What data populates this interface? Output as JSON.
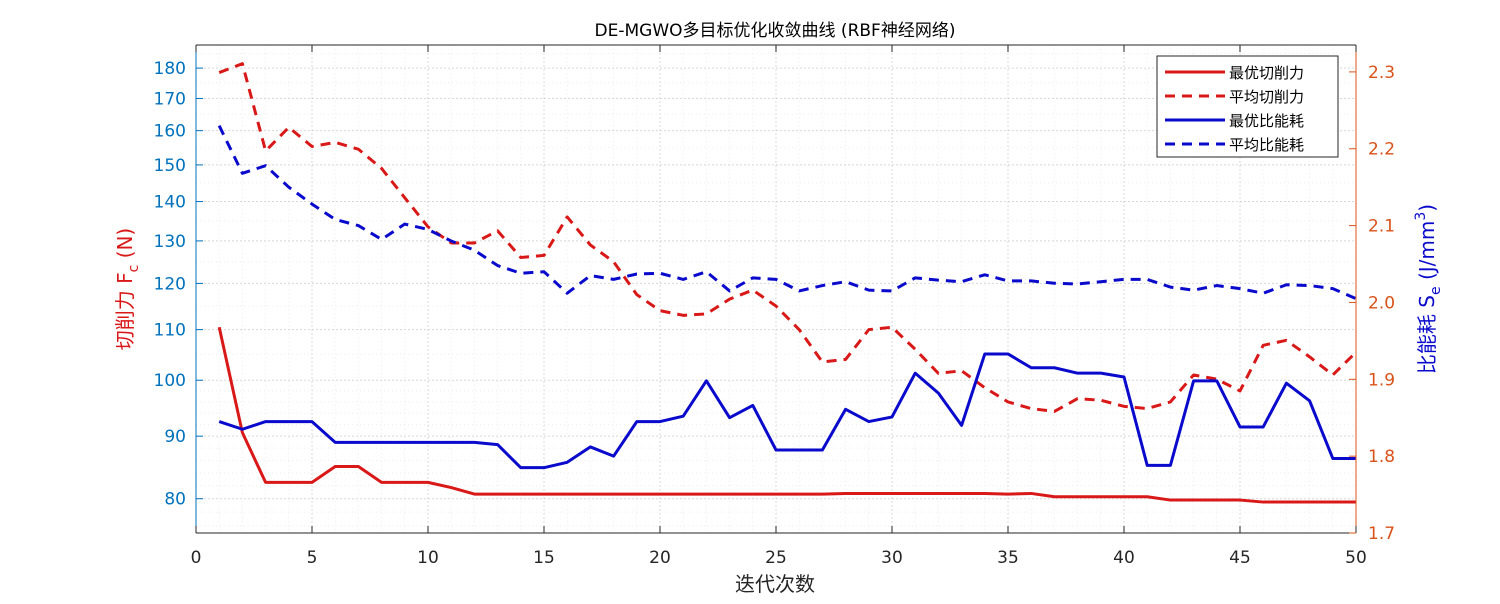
{
  "chart_data": {
    "type": "line",
    "title": "DE-MGWO多目标优化收敛曲线 (RBF神经网络)",
    "xlabel": "迭代次数",
    "ylabel_left": "切削力 F",
    "ylabel_left_sub": "c",
    "ylabel_left_unit": " (N)",
    "ylabel_right": "比能耗 S",
    "ylabel_right_sub": "e",
    "ylabel_right_unit": " (J/mm",
    "ylabel_right_sup": "3",
    "ylabel_right_close": ")",
    "xlim": [
      0,
      50
    ],
    "ylim_left": [
      75,
      188
    ],
    "ylim_right": [
      1.7,
      2.335
    ],
    "y_left_scale": "log",
    "x_ticks": [
      0,
      5,
      10,
      15,
      20,
      25,
      30,
      35,
      40,
      45,
      50
    ],
    "y_left_ticks": [
      80,
      90,
      100,
      110,
      120,
      130,
      140,
      150,
      160,
      170,
      180
    ],
    "y_right_ticks": [
      1.7,
      1.8,
      1.9,
      2.0,
      2.1,
      2.2,
      2.3
    ],
    "grid": true,
    "legend_position": "top-right",
    "colors": {
      "red": "#D91818",
      "blue": "#0A0ACC",
      "left_axis": "#0072BD",
      "right_axis": "#D95319",
      "grid": "#d8d8d8",
      "axis": "#262626"
    },
    "x": [
      1,
      2,
      3,
      4,
      5,
      6,
      7,
      8,
      9,
      10,
      11,
      12,
      13,
      14,
      15,
      16,
      17,
      18,
      19,
      20,
      21,
      22,
      23,
      24,
      25,
      26,
      27,
      28,
      29,
      30,
      31,
      32,
      33,
      34,
      35,
      36,
      37,
      38,
      39,
      40,
      41,
      42,
      43,
      44,
      45,
      46,
      47,
      48,
      49,
      50
    ],
    "series": [
      {
        "name": "最优切削力",
        "axis": "left",
        "dash": false,
        "color": "#D91818",
        "values": [
          110.5,
          90.6,
          82.5,
          82.5,
          82.5,
          85,
          85,
          82.5,
          82.5,
          82.5,
          81.7,
          80.7,
          80.7,
          80.7,
          80.7,
          80.7,
          80.7,
          80.7,
          80.7,
          80.7,
          80.7,
          80.7,
          80.7,
          80.7,
          80.7,
          80.7,
          80.7,
          80.8,
          80.8,
          80.8,
          80.8,
          80.8,
          80.8,
          80.8,
          80.7,
          80.8,
          80.3,
          80.3,
          80.3,
          80.3,
          80.3,
          79.8,
          79.8,
          79.8,
          79.8,
          79.5,
          79.5,
          79.5,
          79.5,
          79.5
        ]
      },
      {
        "name": "平均切削力",
        "axis": "left",
        "dash": true,
        "color": "#D91818",
        "values": [
          178.5,
          181.5,
          154,
          161,
          155.3,
          156.5,
          154.5,
          149,
          141,
          133.5,
          129.5,
          129.5,
          132.5,
          126,
          126.5,
          136,
          129,
          125,
          117.5,
          114,
          113,
          113.3,
          116.5,
          118.5,
          115,
          110,
          103.5,
          104,
          110,
          110.5,
          106,
          101.3,
          101.8,
          98.6,
          96,
          94.8,
          94.3,
          96.6,
          96.3,
          95.2,
          94.8,
          96,
          101,
          100.2,
          98,
          106.8,
          107.8,
          104.5,
          101,
          105.4
        ]
      },
      {
        "name": "最优比能耗",
        "axis": "right",
        "dash": false,
        "color": "#0A0ACC",
        "values": [
          1.845,
          1.835,
          1.845,
          1.845,
          1.845,
          1.818,
          1.818,
          1.818,
          1.818,
          1.818,
          1.818,
          1.818,
          1.815,
          1.785,
          1.785,
          1.792,
          1.812,
          1.8,
          1.845,
          1.845,
          1.852,
          1.898,
          1.85,
          1.866,
          1.808,
          1.808,
          1.808,
          1.861,
          1.845,
          1.851,
          1.908,
          1.882,
          1.84,
          1.933,
          1.933,
          1.915,
          1.915,
          1.908,
          1.908,
          1.903,
          1.788,
          1.788,
          1.898,
          1.898,
          1.838,
          1.838,
          1.895,
          1.872,
          1.797,
          1.797
        ]
      },
      {
        "name": "平均比能耗",
        "axis": "right",
        "dash": true,
        "color": "#0A0ACC",
        "values": [
          2.23,
          2.168,
          2.178,
          2.15,
          2.128,
          2.108,
          2.1,
          2.082,
          2.102,
          2.095,
          2.08,
          2.068,
          2.048,
          2.038,
          2.04,
          2.012,
          2.035,
          2.03,
          2.037,
          2.038,
          2.03,
          2.04,
          2.015,
          2.032,
          2.03,
          2.015,
          2.022,
          2.027,
          2.016,
          2.015,
          2.032,
          2.029,
          2.027,
          2.036,
          2.028,
          2.028,
          2.025,
          2.024,
          2.027,
          2.03,
          2.03,
          2.02,
          2.016,
          2.022,
          2.018,
          2.012,
          2.023,
          2.022,
          2.018,
          2.005
        ]
      }
    ]
  }
}
